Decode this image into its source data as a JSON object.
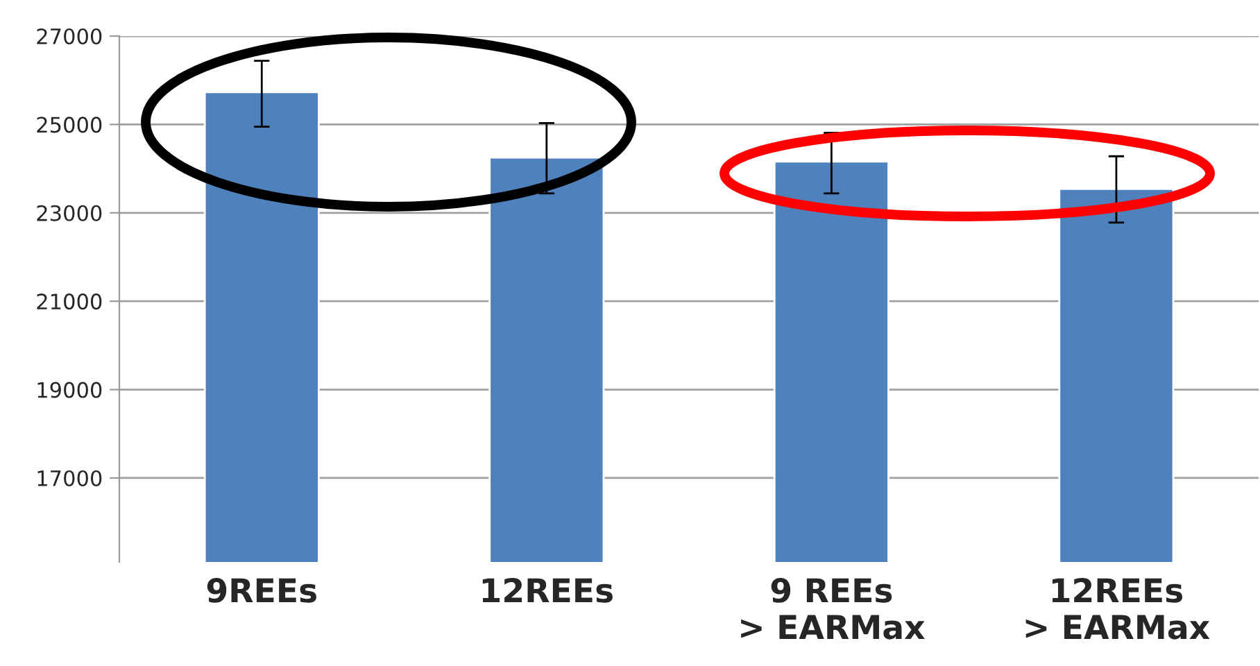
{
  "chart_data": {
    "type": "bar",
    "categories": [
      "9REEs",
      "12REEs",
      "9 REEs\n> EARMax",
      "12REEs\n> EARMax"
    ],
    "values": [
      25730,
      24250,
      24160,
      23540
    ],
    "errors": [
      [
        24950,
        26440
      ],
      [
        23440,
        25030
      ],
      [
        23440,
        24810
      ],
      [
        22780,
        24280
      ]
    ],
    "color": "#4f81bd",
    "ylim": [
      15100,
      27000
    ],
    "yticks": [
      17000,
      19000,
      21000,
      23000,
      25000,
      27000
    ],
    "grid": "y",
    "legend": false
  }
}
